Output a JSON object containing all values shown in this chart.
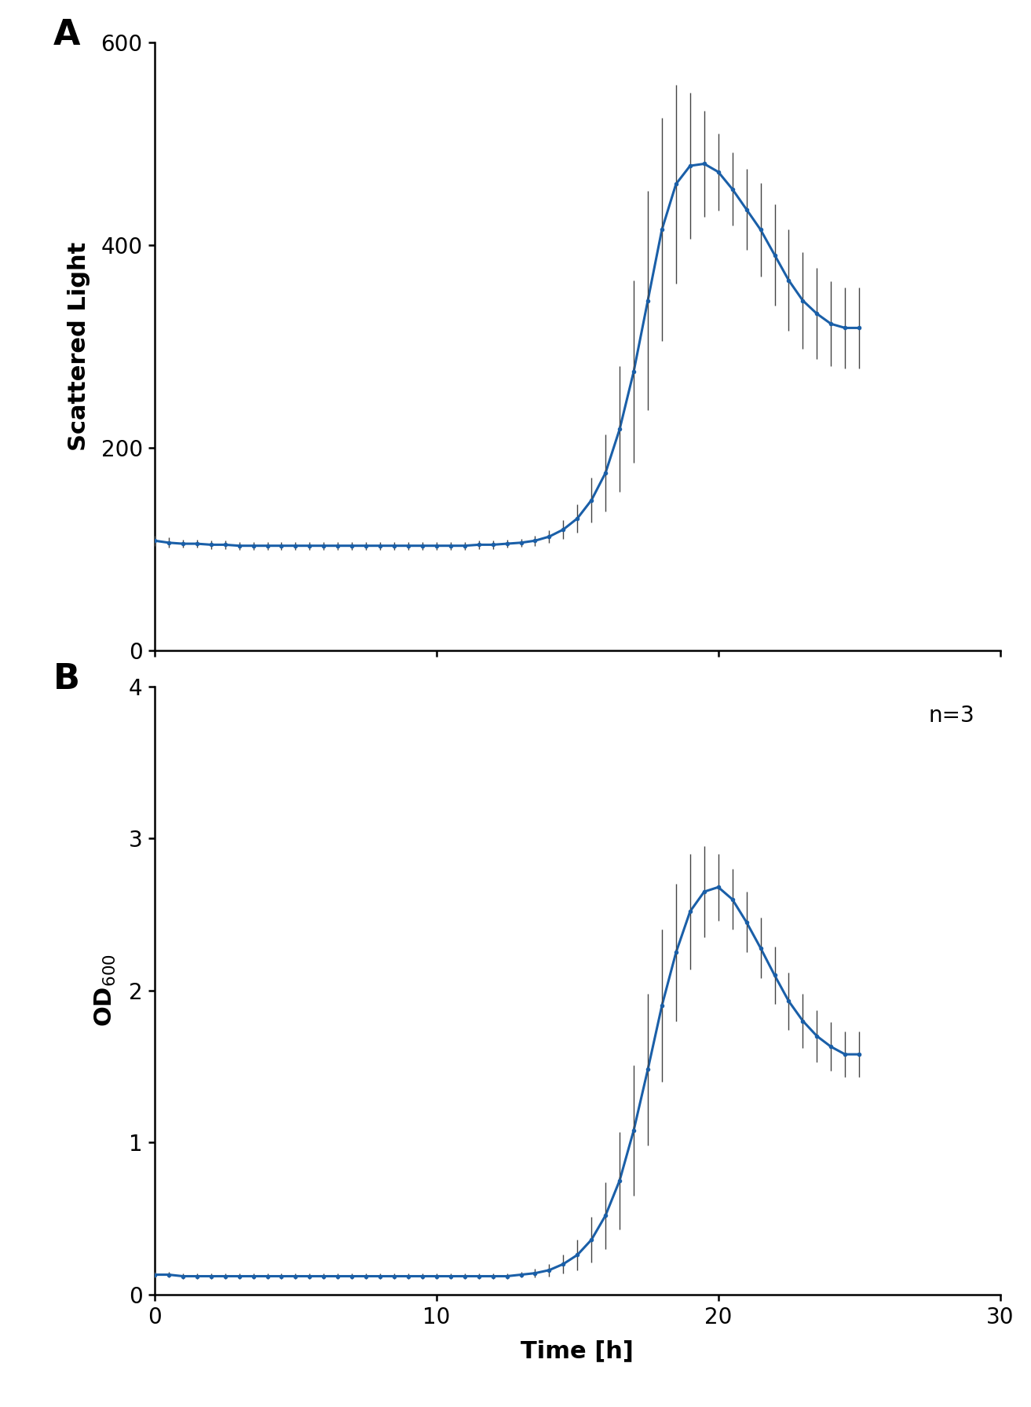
{
  "panel_A": {
    "ylabel": "Scattered Light",
    "ylim": [
      0,
      600
    ],
    "yticks": [
      0,
      200,
      400,
      600
    ],
    "time": [
      0.0,
      0.5,
      1.0,
      1.5,
      2.0,
      2.5,
      3.0,
      3.5,
      4.0,
      4.5,
      5.0,
      5.5,
      6.0,
      6.5,
      7.0,
      7.5,
      8.0,
      8.5,
      9.0,
      9.5,
      10.0,
      10.5,
      11.0,
      11.5,
      12.0,
      12.5,
      13.0,
      13.5,
      14.0,
      14.5,
      15.0,
      15.5,
      16.0,
      16.5,
      17.0,
      17.5,
      18.0,
      18.5,
      19.0,
      19.5,
      20.0,
      20.5,
      21.0,
      21.5,
      22.0,
      22.5,
      23.0,
      23.5,
      24.0,
      24.5,
      25.0
    ],
    "mean": [
      108,
      106,
      105,
      105,
      104,
      104,
      103,
      103,
      103,
      103,
      103,
      103,
      103,
      103,
      103,
      103,
      103,
      103,
      103,
      103,
      103,
      103,
      103,
      104,
      104,
      105,
      106,
      108,
      112,
      119,
      130,
      148,
      175,
      218,
      275,
      345,
      415,
      460,
      478,
      480,
      472,
      455,
      435,
      415,
      390,
      365,
      345,
      332,
      322,
      318,
      318
    ],
    "std": [
      5,
      5,
      4,
      4,
      4,
      4,
      4,
      4,
      4,
      4,
      4,
      4,
      4,
      4,
      4,
      4,
      4,
      4,
      4,
      4,
      4,
      4,
      4,
      4,
      4,
      4,
      4,
      5,
      6,
      9,
      14,
      22,
      38,
      62,
      90,
      108,
      110,
      98,
      72,
      52,
      38,
      36,
      40,
      46,
      50,
      50,
      48,
      45,
      42,
      40,
      40
    ]
  },
  "panel_B": {
    "ylabel": "OD$_{600}$",
    "ylim": [
      0,
      4
    ],
    "yticks": [
      0,
      1,
      2,
      3,
      4
    ],
    "time": [
      0.0,
      0.5,
      1.0,
      1.5,
      2.0,
      2.5,
      3.0,
      3.5,
      4.0,
      4.5,
      5.0,
      5.5,
      6.0,
      6.5,
      7.0,
      7.5,
      8.0,
      8.5,
      9.0,
      9.5,
      10.0,
      10.5,
      11.0,
      11.5,
      12.0,
      12.5,
      13.0,
      13.5,
      14.0,
      14.5,
      15.0,
      15.5,
      16.0,
      16.5,
      17.0,
      17.5,
      18.0,
      18.5,
      19.0,
      19.5,
      20.0,
      20.5,
      21.0,
      21.5,
      22.0,
      22.5,
      23.0,
      23.5,
      24.0,
      24.5,
      25.0
    ],
    "mean": [
      0.13,
      0.13,
      0.12,
      0.12,
      0.12,
      0.12,
      0.12,
      0.12,
      0.12,
      0.12,
      0.12,
      0.12,
      0.12,
      0.12,
      0.12,
      0.12,
      0.12,
      0.12,
      0.12,
      0.12,
      0.12,
      0.12,
      0.12,
      0.12,
      0.12,
      0.12,
      0.13,
      0.14,
      0.16,
      0.2,
      0.26,
      0.36,
      0.52,
      0.75,
      1.08,
      1.48,
      1.9,
      2.25,
      2.52,
      2.65,
      2.68,
      2.6,
      2.45,
      2.28,
      2.1,
      1.93,
      1.8,
      1.7,
      1.63,
      1.58,
      1.58
    ],
    "std": [
      0.02,
      0.02,
      0.02,
      0.02,
      0.02,
      0.02,
      0.02,
      0.02,
      0.02,
      0.02,
      0.02,
      0.02,
      0.02,
      0.02,
      0.02,
      0.02,
      0.02,
      0.02,
      0.02,
      0.02,
      0.02,
      0.02,
      0.02,
      0.02,
      0.02,
      0.02,
      0.02,
      0.03,
      0.04,
      0.06,
      0.1,
      0.15,
      0.22,
      0.32,
      0.43,
      0.5,
      0.5,
      0.45,
      0.38,
      0.3,
      0.22,
      0.2,
      0.2,
      0.2,
      0.19,
      0.19,
      0.18,
      0.17,
      0.16,
      0.15,
      0.15
    ]
  },
  "xlim": [
    0,
    30
  ],
  "xticks": [
    0,
    10,
    20,
    30
  ],
  "xlabel": "Time [h]",
  "line_color": "#1a5fa8",
  "error_color": "#444444",
  "line_width": 2.2,
  "marker_size": 4.0,
  "cap_size": 2.5,
  "error_lw": 1.0,
  "panel_A_label": "A",
  "panel_B_label": "B",
  "n_label": "n=3",
  "background_color": "#ffffff"
}
